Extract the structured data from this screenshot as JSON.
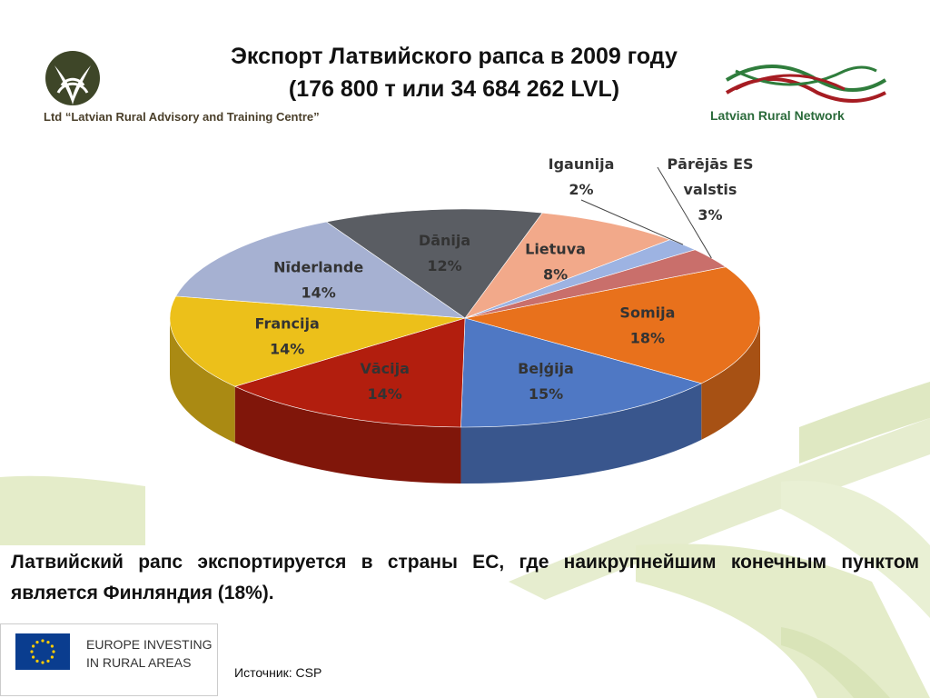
{
  "header": {
    "title_line1": "Экспорт Латвийского рапса в 2009 году",
    "title_line2": "(176 800 т или 34 684 262 LVL)",
    "org_name": "Ltd “Latvian Rural Advisory and Training Centre”",
    "network_name": "Latvian Rural Network"
  },
  "chart_data": {
    "type": "pie",
    "title": "",
    "unit": "%",
    "series": [
      {
        "label": "Somija",
        "value": 18,
        "value_label": "18%",
        "color": "#e8711c"
      },
      {
        "label": "Beļģija",
        "value": 15,
        "value_label": "15%",
        "color": "#4f78c4"
      },
      {
        "label": "Vācija",
        "value": 14,
        "value_label": "14%",
        "color": "#b21e0e"
      },
      {
        "label": "Francija",
        "value": 14,
        "value_label": "14%",
        "color": "#ecc01a"
      },
      {
        "label": "Nīderlande",
        "value": 14,
        "value_label": "14%",
        "color": "#a6b1d2"
      },
      {
        "label": "Dānija",
        "value": 12,
        "value_label": "12%",
        "color": "#5a5d63"
      },
      {
        "label": "Lietuva",
        "value": 8,
        "value_label": "8%",
        "color": "#f2a98a"
      },
      {
        "label": "Igaunija",
        "value": 2,
        "value_label": "2%",
        "color": "#9db3e2"
      },
      {
        "label": "Pārējās ES valstis",
        "label_lines": [
          "Pārējās ES",
          "valstis"
        ],
        "value": 3,
        "value_label": "3%",
        "color": "#c96f6b"
      }
    ],
    "three_d": true,
    "legend": "none"
  },
  "summary_text": "Латвийский рапс экспортируется в страны ЕС, где наикрупнейшим конечным пунктом является Финляндия (18%).",
  "eu_badge": {
    "line1": "EUROPE INVESTING",
    "line2": "IN RURAL AREAS"
  },
  "source_text": "Источник: CSP",
  "colors": {
    "accent_green": "#d6e4b0",
    "eu_blue": "#0a3d8f",
    "eu_gold": "#ffcc00"
  }
}
